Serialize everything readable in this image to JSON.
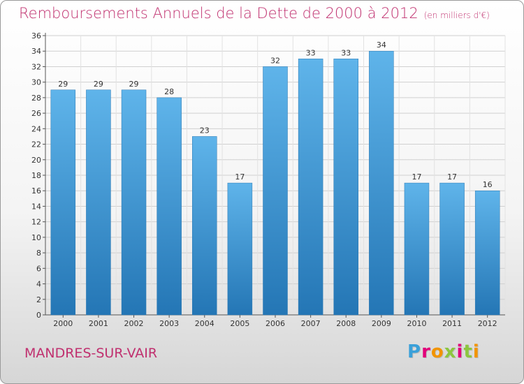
{
  "title": "Remboursements Annuels de la Dette de 2000 à 2012",
  "unit": "(en milliers d'€)",
  "commune": "MANDRES-SUR-VAIR",
  "logo": {
    "text": "Proxiti",
    "colors": [
      "#3aa0d9",
      "#f29400",
      "#e2007a",
      "#8cc63f"
    ]
  },
  "chart_data": {
    "type": "bar",
    "title": "Remboursements Annuels de la Dette de 2000 à 2012",
    "xlabel": "",
    "ylabel": "",
    "categories": [
      "2000",
      "2001",
      "2002",
      "2003",
      "2004",
      "2005",
      "2006",
      "2007",
      "2008",
      "2009",
      "2010",
      "2011",
      "2012"
    ],
    "values": [
      29,
      29,
      29,
      28,
      23,
      17,
      32,
      33,
      33,
      34,
      17,
      17,
      16
    ],
    "ylim": [
      0,
      36
    ],
    "ytick_step": 2,
    "grid": true,
    "bar_color": "#4aa3df",
    "bar_color_dark": "#2476b5"
  }
}
